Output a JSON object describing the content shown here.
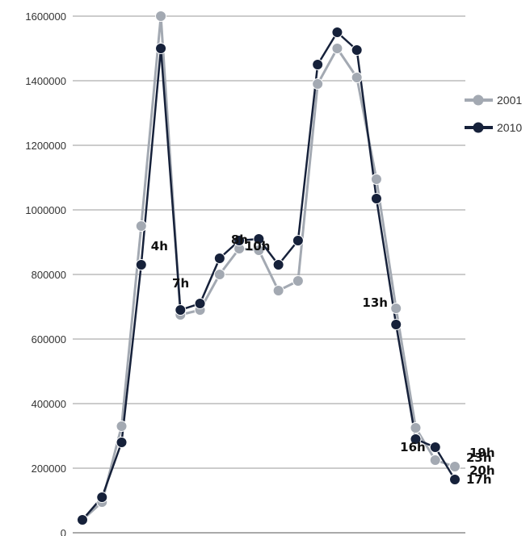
{
  "chart_data": {
    "type": "line",
    "title": "",
    "xlabel": "",
    "ylabel": "",
    "ylim": [
      0,
      1600000
    ],
    "yticks": [
      0,
      200000,
      400000,
      600000,
      800000,
      1000000,
      1200000,
      1400000,
      1600000
    ],
    "ytick_labels": [
      "0",
      "200000",
      "400000",
      "600000",
      "800000",
      "1000000",
      "1200000",
      "1400000",
      "1600000"
    ],
    "grid": true,
    "legend_position": "right",
    "hour_labels": [
      {
        "text": "4h",
        "index": 3
      },
      {
        "text": "7h",
        "index": 6
      },
      {
        "text": "8h",
        "index": 7
      },
      {
        "text": "10h",
        "index": 10
      },
      {
        "text": "13h",
        "index": 16
      },
      {
        "text": "16h",
        "index": 18
      },
      {
        "text": "17h",
        "index": 20
      },
      {
        "text": "19h",
        "index": 22
      },
      {
        "text": "20h",
        "index": 24
      },
      {
        "text": "23h",
        "index": 27
      }
    ],
    "series": [
      {
        "name": "2001",
        "color": "#a3a9b2",
        "values": [
          40000,
          95000,
          330000,
          950000,
          1600000,
          675000,
          690000,
          800000,
          880000,
          875000,
          750000,
          780000,
          1390000,
          1500000,
          1410000,
          1095000,
          695000,
          325000,
          225000,
          205000
        ]
      },
      {
        "name": "2010",
        "color": "#16213a",
        "values": [
          40000,
          110000,
          280000,
          830000,
          1500000,
          690000,
          710000,
          850000,
          905000,
          910000,
          830000,
          905000,
          1450000,
          1550000,
          1495000,
          1035000,
          645000,
          290000,
          265000,
          165000
        ]
      }
    ]
  }
}
